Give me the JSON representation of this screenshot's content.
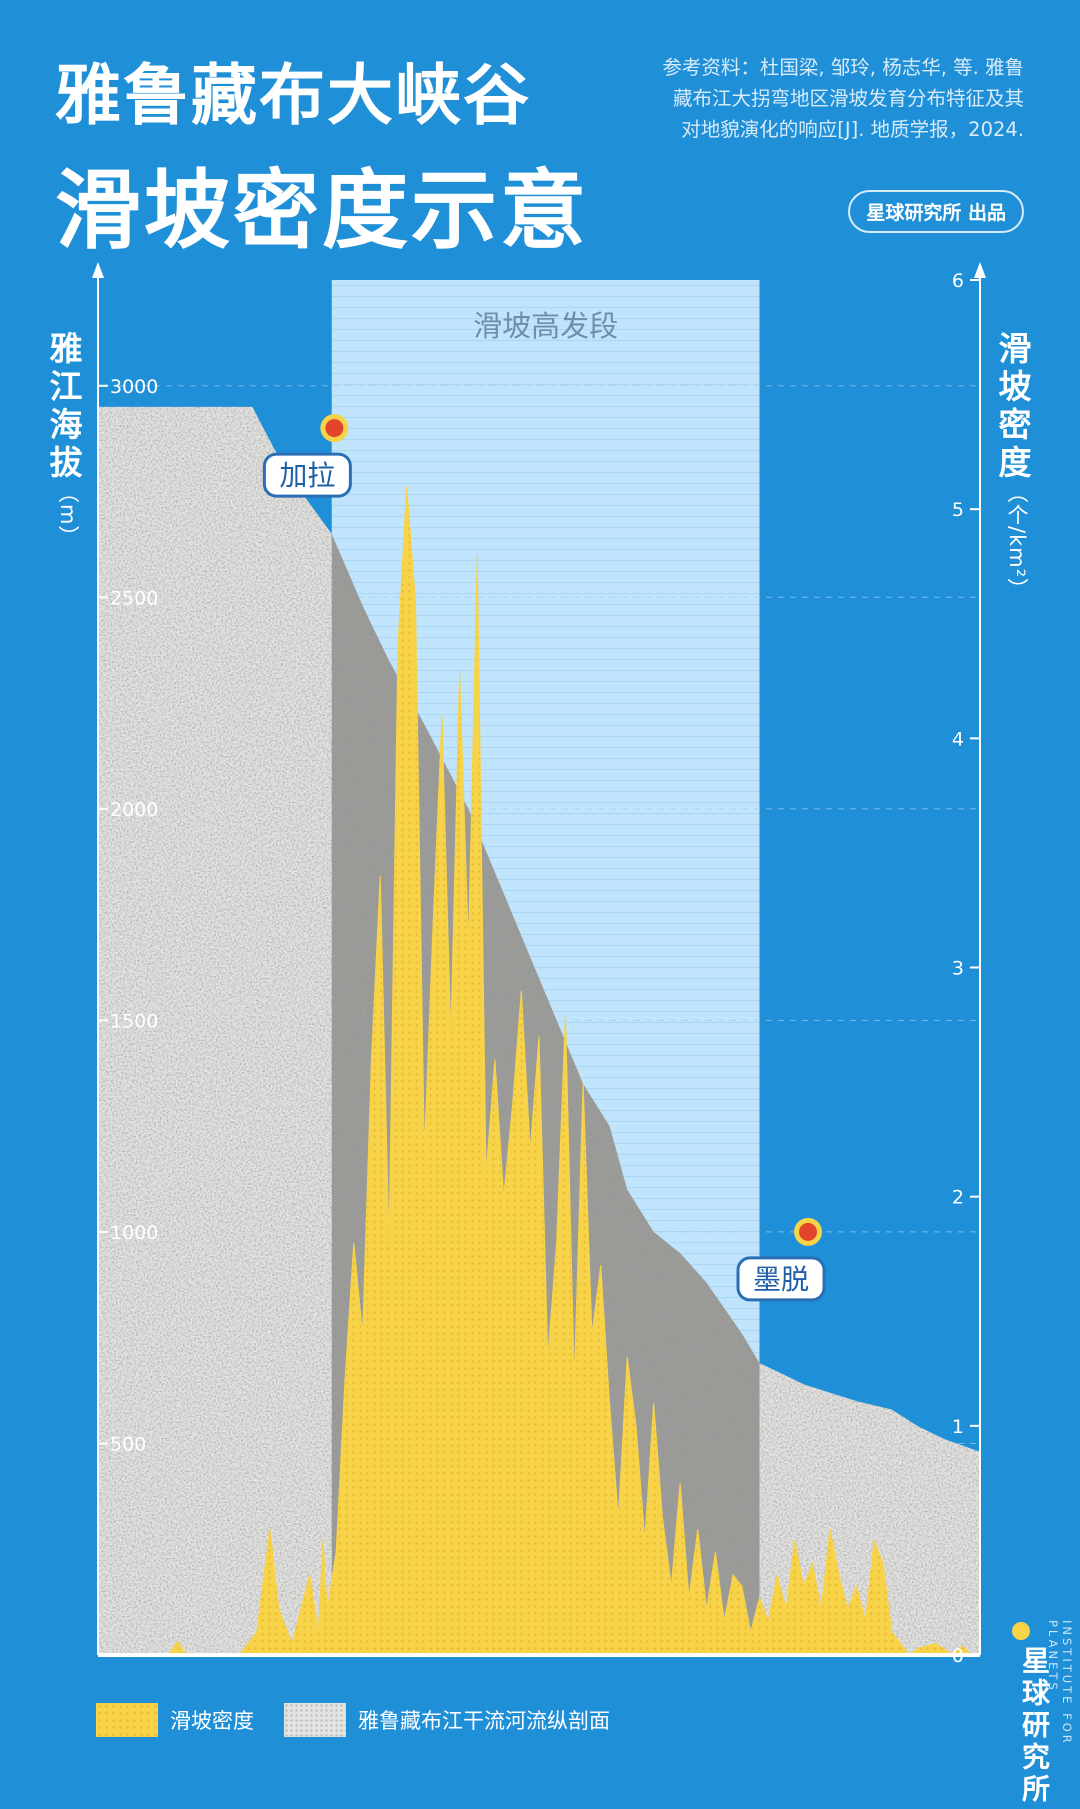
{
  "header": {
    "title_line1": "雅鲁藏布大峡谷",
    "title_line2": "滑坡密度示意",
    "reference_line1": "参考资料：杜国梁, 邹玲, 杨志华, 等. 雅鲁",
    "reference_line2": "藏布江大拐弯地区滑坡发育分布特征及其",
    "reference_line3": "对地貌演化的响应[J]. 地质学报，2024.",
    "producer": "星球研究所 出品"
  },
  "axes": {
    "left_label": "雅江海拔",
    "left_unit": "（m）",
    "right_label": "滑坡密度",
    "right_unit": "（个/km²）"
  },
  "legend": {
    "density": "滑坡密度",
    "profile": "雅鲁藏布江干流河流纵剖面"
  },
  "brand": {
    "name": "星球研究所",
    "english": "INSTITUTE FOR PLANETS"
  },
  "colors": {
    "background": "#1f8fd8",
    "density_fill": "#f7d34a",
    "profile_fill": "#e3e3e1",
    "highlight_band": "#bfe4fb",
    "marker": "#e2452b"
  },
  "chart_data": {
    "type": "area",
    "x_range": [
      0,
      100
    ],
    "left_axis": {
      "label": "雅江海拔",
      "unit": "m",
      "ticks": [
        "3000",
        "2500",
        "2000",
        "1500",
        "1000",
        "500"
      ],
      "tick_values": [
        3000,
        2500,
        2000,
        1500,
        1000,
        500
      ],
      "range": [
        0,
        3250
      ]
    },
    "right_axis": {
      "label": "滑坡密度",
      "unit": "个/km²",
      "ticks": [
        "6",
        "5",
        "4",
        "3",
        "2",
        "1",
        "0"
      ],
      "tick_values": [
        6,
        5,
        4,
        3,
        2,
        1,
        0
      ],
      "range": [
        0,
        6
      ]
    },
    "highlight_band": {
      "label": "滑坡高发段",
      "x_start": 26.5,
      "x_end": 75
    },
    "annotations": [
      {
        "label": "加拉",
        "x": 26.8,
        "elevation": 2900
      },
      {
        "label": "墨脱",
        "x": 80.5,
        "elevation": 1000
      }
    ],
    "series": [
      {
        "name": "雅鲁藏布江干流河流纵剖面",
        "x": [
          0,
          17.5,
          20,
          23,
          26.5,
          30,
          33,
          37,
          42,
          48,
          52,
          55,
          58,
          60,
          63,
          66,
          69,
          71,
          73,
          75,
          77,
          80,
          83,
          86,
          90,
          93,
          96,
          100
        ],
        "y": [
          2950,
          2950,
          2850,
          2750,
          2650,
          2480,
          2350,
          2200,
          2000,
          1700,
          1500,
          1350,
          1250,
          1100,
          1000,
          950,
          880,
          820,
          760,
          690,
          670,
          640,
          620,
          600,
          580,
          540,
          510,
          480
        ]
      },
      {
        "name": "滑坡密度",
        "x": [
          0,
          8,
          9,
          10,
          16,
          18,
          19.5,
          20.5,
          22,
          24,
          25,
          25.5,
          26,
          27,
          28,
          29,
          30,
          31,
          32,
          33,
          34,
          35,
          36,
          37,
          38,
          39,
          40,
          41,
          42,
          43,
          44,
          45,
          46,
          47,
          48,
          49,
          50,
          51,
          52,
          53,
          54,
          55,
          56,
          57,
          58,
          59,
          60,
          61,
          62,
          63,
          64,
          65,
          66,
          67,
          68,
          69,
          70,
          71,
          72,
          73,
          74,
          75,
          76,
          77,
          78,
          79,
          80,
          81,
          82,
          83,
          84,
          85,
          86,
          87,
          88,
          89,
          90,
          91,
          92,
          93,
          95,
          97,
          98,
          99,
          100
        ],
        "y": [
          0,
          0,
          0.06,
          0,
          0,
          0.1,
          0.55,
          0.2,
          0.05,
          0.35,
          0.1,
          0.5,
          0.2,
          0.45,
          1.2,
          1.8,
          1.4,
          2.6,
          3.4,
          1.8,
          4.4,
          5.1,
          4.6,
          2.2,
          3.2,
          4.1,
          2.7,
          4.3,
          3.1,
          4.8,
          2.1,
          2.6,
          2.0,
          2.4,
          2.9,
          2.2,
          2.7,
          1.3,
          1.8,
          2.8,
          1.2,
          2.5,
          1.4,
          1.7,
          1.1,
          0.6,
          1.3,
          1.0,
          0.5,
          1.1,
          0.6,
          0.3,
          0.75,
          0.25,
          0.55,
          0.2,
          0.45,
          0.15,
          0.35,
          0.3,
          0.1,
          0.25,
          0.15,
          0.35,
          0.2,
          0.5,
          0.3,
          0.4,
          0.2,
          0.55,
          0.35,
          0.2,
          0.3,
          0.15,
          0.5,
          0.4,
          0.1,
          0.05,
          0.0,
          0.03,
          0.05,
          0.0,
          0.04,
          0.0,
          0.0
        ]
      }
    ]
  }
}
